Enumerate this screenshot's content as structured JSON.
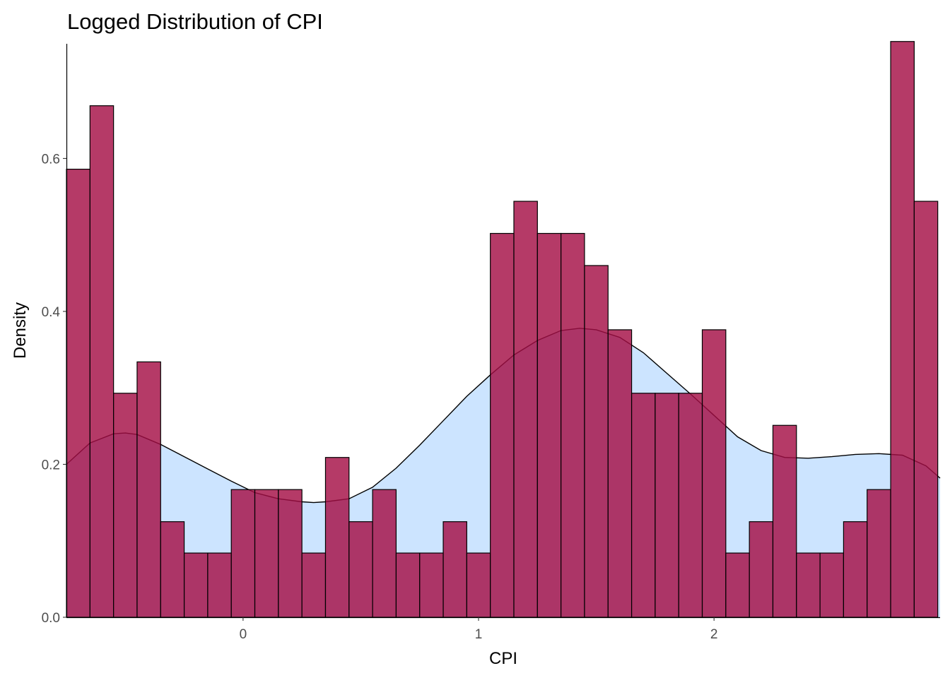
{
  "chart_data": {
    "type": "bar",
    "title": "Logged Distribution of CPI",
    "xlabel": "CPI",
    "ylabel": "Density",
    "xlim": [
      -0.75,
      2.96
    ],
    "ylim": [
      0,
      0.75
    ],
    "xticks": [
      0,
      1,
      2
    ],
    "xtick_labels": [
      "0",
      "1",
      "2"
    ],
    "yticks": [
      0.0,
      0.2,
      0.4,
      0.6
    ],
    "ytick_labels": [
      "0.0",
      "0.2",
      "0.4",
      "0.6"
    ],
    "grid": false,
    "legend": "none",
    "bar_fill": "#a50f45",
    "bar_stroke": "#000000",
    "density_fill": "#cce4ff",
    "density_stroke": "#000000",
    "bins": {
      "left_edges": [
        -0.75,
        -0.65,
        -0.55,
        -0.45,
        -0.35,
        -0.25,
        -0.15,
        -0.05,
        0.05,
        0.15,
        0.25,
        0.35,
        0.45,
        0.55,
        0.65,
        0.75,
        0.85,
        0.95,
        1.05,
        1.15,
        1.25,
        1.35,
        1.45,
        1.55,
        1.65,
        1.75,
        1.85,
        1.95,
        2.05,
        2.15,
        2.25,
        2.35,
        2.45,
        2.55,
        2.65,
        2.75,
        2.85
      ],
      "width": 0.1,
      "density": [
        0.586,
        0.669,
        0.293,
        0.334,
        0.125,
        0.084,
        0.084,
        0.167,
        0.167,
        0.167,
        0.084,
        0.209,
        0.125,
        0.167,
        0.084,
        0.084,
        0.125,
        0.084,
        0.502,
        0.544,
        0.502,
        0.502,
        0.46,
        0.376,
        0.293,
        0.293,
        0.293,
        0.376,
        0.084,
        0.125,
        0.251,
        0.084,
        0.084,
        0.125,
        0.167,
        0.753,
        0.544
      ]
    },
    "density_curve": {
      "x": [
        -0.75,
        -0.65,
        -0.55,
        -0.5,
        -0.45,
        -0.35,
        -0.25,
        -0.15,
        -0.05,
        0.05,
        0.15,
        0.25,
        0.3,
        0.35,
        0.45,
        0.55,
        0.65,
        0.75,
        0.85,
        0.95,
        1.05,
        1.15,
        1.25,
        1.35,
        1.43,
        1.5,
        1.6,
        1.7,
        1.8,
        1.9,
        2.0,
        2.1,
        2.2,
        2.3,
        2.4,
        2.5,
        2.6,
        2.7,
        2.8,
        2.9,
        2.96
      ],
      "y": [
        0.2,
        0.228,
        0.24,
        0.241,
        0.239,
        0.226,
        0.21,
        0.194,
        0.178,
        0.163,
        0.155,
        0.151,
        0.15,
        0.151,
        0.155,
        0.17,
        0.195,
        0.225,
        0.257,
        0.289,
        0.317,
        0.343,
        0.362,
        0.375,
        0.378,
        0.376,
        0.366,
        0.346,
        0.319,
        0.292,
        0.264,
        0.236,
        0.218,
        0.209,
        0.208,
        0.21,
        0.213,
        0.214,
        0.212,
        0.198,
        0.182
      ]
    }
  }
}
